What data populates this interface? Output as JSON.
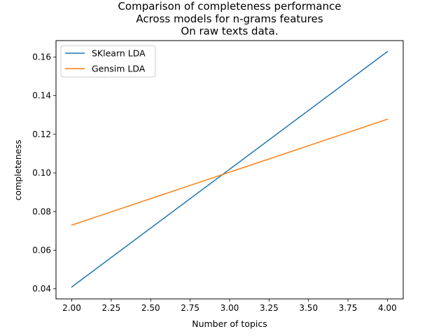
{
  "chart_data": {
    "type": "line",
    "title_lines": [
      "Comparison of completeness performance",
      "Across models for n-grams features",
      "On raw texts data."
    ],
    "xlabel": "Number of topics",
    "ylabel": "completeness",
    "xlim": [
      1.9,
      4.1
    ],
    "ylim": [
      0.0348,
      0.1685
    ],
    "xticks": [
      2.0,
      2.25,
      2.5,
      2.75,
      3.0,
      3.25,
      3.5,
      3.75,
      4.0
    ],
    "xtick_labels": [
      "2.00",
      "2.25",
      "2.50",
      "2.75",
      "3.00",
      "3.25",
      "3.50",
      "3.75",
      "4.00"
    ],
    "yticks": [
      0.04,
      0.06,
      0.08,
      0.1,
      0.12,
      0.14,
      0.16
    ],
    "ytick_labels": [
      "0.04",
      "0.06",
      "0.08",
      "0.10",
      "0.12",
      "0.14",
      "0.16"
    ],
    "grid": false,
    "legend_position": "top-left",
    "series": [
      {
        "name": "SKlearn LDA",
        "color": "#1f77b4",
        "x": [
          2.0,
          4.0
        ],
        "y": [
          0.041,
          0.1628
        ]
      },
      {
        "name": "Gensim LDA",
        "color": "#ff7f0e",
        "x": [
          2.0,
          4.0
        ],
        "y": [
          0.073,
          0.1278
        ]
      }
    ]
  }
}
